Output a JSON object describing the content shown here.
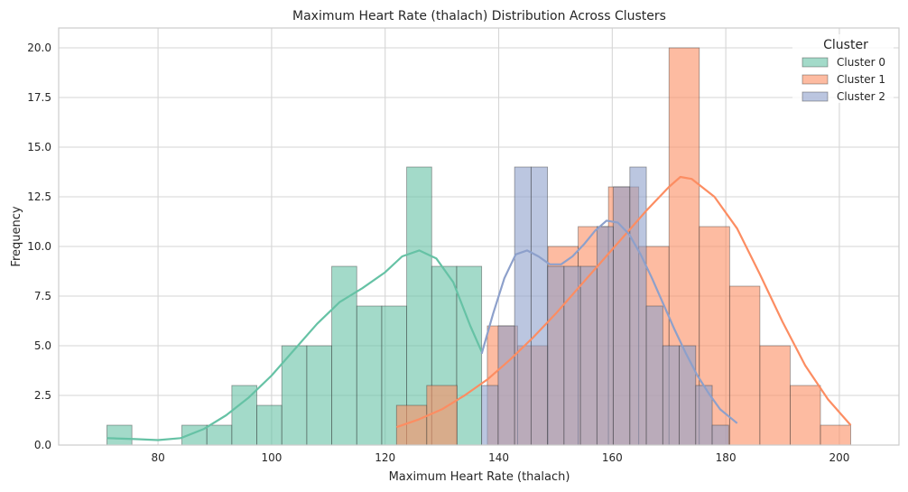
{
  "chart_data": {
    "type": "bar",
    "title": "Maximum Heart Rate (thalach) Distribution Across Clusters",
    "xlabel": "Maximum Heart Rate (thalach)",
    "ylabel": "Frequency",
    "xlim": [
      62.5,
      210.5
    ],
    "ylim": [
      0,
      21
    ],
    "xticks": [
      80,
      100,
      120,
      140,
      160,
      180,
      200
    ],
    "xtick_labels": [
      "80",
      "100",
      "120",
      "140",
      "160",
      "180",
      "200"
    ],
    "yticks": [
      0,
      2.5,
      5,
      7.5,
      10,
      12.5,
      15,
      17.5,
      20
    ],
    "ytick_labels": [
      "0.0",
      "2.5",
      "5.0",
      "7.5",
      "10.0",
      "12.5",
      "15.0",
      "17.5",
      "20.0"
    ],
    "grid": true,
    "legend_title": "Cluster",
    "legend_position": "top-right",
    "series": [
      {
        "name": "Cluster 0",
        "color": "#66c2a5",
        "bin_edges": [
          71,
          75.4,
          79.8,
          84.2,
          88.6,
          93,
          97.4,
          101.8,
          106.2,
          110.6,
          115,
          119.4,
          123.8,
          128.2,
          132.6,
          137
        ],
        "counts": [
          1,
          0,
          0,
          1,
          1,
          3,
          2,
          5,
          5,
          9,
          7,
          7,
          14,
          9,
          9
        ],
        "kde": [
          [
            71,
            0.35
          ],
          [
            76,
            0.3
          ],
          [
            80,
            0.25
          ],
          [
            84,
            0.35
          ],
          [
            88,
            0.8
          ],
          [
            92,
            1.5
          ],
          [
            96,
            2.4
          ],
          [
            100,
            3.5
          ],
          [
            104,
            4.8
          ],
          [
            108,
            6.1
          ],
          [
            112,
            7.2
          ],
          [
            116,
            7.9
          ],
          [
            120,
            8.7
          ],
          [
            123,
            9.5
          ],
          [
            126,
            9.8
          ],
          [
            129,
            9.4
          ],
          [
            132,
            8.2
          ],
          [
            135,
            6.0
          ],
          [
            137,
            4.7
          ]
        ]
      },
      {
        "name": "Cluster 1",
        "color": "#fc8d62",
        "bin_edges": [
          122,
          127.33,
          132.67,
          138,
          143.33,
          148.67,
          154,
          159.33,
          164.67,
          170,
          175.33,
          180.67,
          186,
          191.33,
          196.67,
          202
        ],
        "counts": [
          2,
          3,
          0,
          6,
          5,
          10,
          11,
          13,
          10,
          20,
          11,
          8,
          5,
          3,
          1
        ],
        "kde": [
          [
            122,
            0.9
          ],
          [
            126,
            1.3
          ],
          [
            130,
            1.8
          ],
          [
            134,
            2.5
          ],
          [
            138,
            3.3
          ],
          [
            142,
            4.3
          ],
          [
            146,
            5.4
          ],
          [
            150,
            6.6
          ],
          [
            154,
            7.9
          ],
          [
            158,
            9.2
          ],
          [
            162,
            10.5
          ],
          [
            166,
            11.8
          ],
          [
            170,
            13.0
          ],
          [
            172,
            13.5
          ],
          [
            174,
            13.4
          ],
          [
            178,
            12.5
          ],
          [
            182,
            10.9
          ],
          [
            186,
            8.6
          ],
          [
            190,
            6.2
          ],
          [
            194,
            4.0
          ],
          [
            198,
            2.3
          ],
          [
            202,
            1.0
          ]
        ]
      },
      {
        "name": "Cluster 2",
        "color": "#8da0cb",
        "bin_edges": [
          137,
          139.9,
          142.8,
          145.7,
          148.6,
          151.5,
          154.4,
          157.3,
          160.2,
          163.1,
          166,
          168.9,
          171.8,
          174.7,
          177.6,
          180.5
        ],
        "counts": [
          3,
          6,
          14,
          14,
          9,
          9,
          9,
          11,
          13,
          14,
          7,
          5,
          5,
          3,
          1
        ],
        "kde": [
          [
            137,
            4.6
          ],
          [
            139,
            6.6
          ],
          [
            141,
            8.4
          ],
          [
            143,
            9.6
          ],
          [
            145,
            9.8
          ],
          [
            147,
            9.5
          ],
          [
            149,
            9.1
          ],
          [
            151,
            9.1
          ],
          [
            153,
            9.5
          ],
          [
            155,
            10.1
          ],
          [
            157,
            10.8
          ],
          [
            159,
            11.3
          ],
          [
            161,
            11.2
          ],
          [
            163,
            10.6
          ],
          [
            165,
            9.6
          ],
          [
            167,
            8.4
          ],
          [
            169,
            7.1
          ],
          [
            171,
            5.8
          ],
          [
            173,
            4.6
          ],
          [
            175,
            3.5
          ],
          [
            177,
            2.6
          ],
          [
            179,
            1.8
          ],
          [
            182,
            1.1
          ]
        ]
      }
    ]
  }
}
